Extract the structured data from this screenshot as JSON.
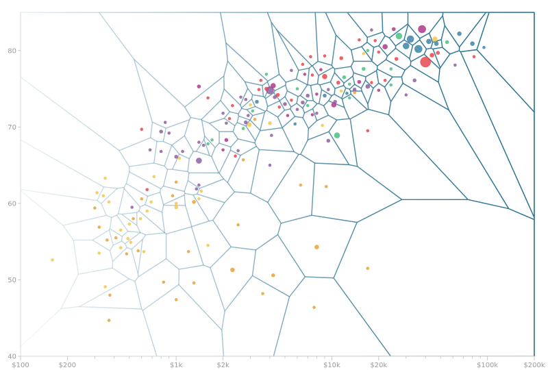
{
  "chart_data": {
    "type": "scatter",
    "title": "",
    "xlabel": "",
    "ylabel": "",
    "x_scale": "log",
    "xlim": [
      100,
      200000
    ],
    "ylim": [
      40,
      85
    ],
    "x_ticks": [
      {
        "value": 100,
        "label": "$100"
      },
      {
        "value": 200,
        "label": "$200"
      },
      {
        "value": 1000,
        "label": "$1k"
      },
      {
        "value": 2000,
        "label": "$2k"
      },
      {
        "value": 10000,
        "label": "$10k"
      },
      {
        "value": 20000,
        "label": "$20k"
      },
      {
        "value": 100000,
        "label": "$100k"
      },
      {
        "value": 200000,
        "label": "$200k"
      }
    ],
    "x_minor_ticks": [
      300,
      400,
      500,
      600,
      700,
      800,
      900,
      3000,
      4000,
      5000,
      6000,
      7000,
      8000,
      9000,
      30000,
      40000,
      50000,
      60000,
      70000,
      80000,
      90000
    ],
    "y_ticks": [
      {
        "value": 40,
        "label": "40"
      },
      {
        "value": 50,
        "label": "50"
      },
      {
        "value": 60,
        "label": "60"
      },
      {
        "value": 70,
        "label": "70"
      },
      {
        "value": 80,
        "label": "80"
      }
    ],
    "grid": false,
    "overlay": "voronoi",
    "colors": {
      "yellow": "#f2c94c",
      "orange": "#e8a23a",
      "purple": "#8e5ea2",
      "magenta": "#b0388a",
      "red": "#e8484f",
      "green": "#4cbf86",
      "blue": "#3d85a8",
      "cell_stroke": "#2e7494",
      "axis": "#d8d8d8"
    },
    "points": [
      {
        "x": 40000,
        "y": 78.5,
        "s": 14,
        "c": "red"
      },
      {
        "x": 38000,
        "y": 82.8,
        "s": 10,
        "c": "magenta"
      },
      {
        "x": 32000,
        "y": 81.5,
        "s": 9,
        "c": "blue"
      },
      {
        "x": 36000,
        "y": 80.2,
        "s": 10,
        "c": "blue"
      },
      {
        "x": 30000,
        "y": 80.6,
        "s": 8,
        "c": "blue"
      },
      {
        "x": 27000,
        "y": 81.9,
        "s": 8,
        "c": "green"
      },
      {
        "x": 42000,
        "y": 81.2,
        "s": 6,
        "c": "blue"
      },
      {
        "x": 44000,
        "y": 79.4,
        "s": 5,
        "c": "red"
      },
      {
        "x": 46000,
        "y": 81.5,
        "s": 6,
        "c": "yellow"
      },
      {
        "x": 47000,
        "y": 80.9,
        "s": 5,
        "c": "blue"
      },
      {
        "x": 48000,
        "y": 79.7,
        "s": 4,
        "c": "red"
      },
      {
        "x": 55000,
        "y": 81.1,
        "s": 4,
        "c": "green"
      },
      {
        "x": 66000,
        "y": 82.2,
        "s": 5,
        "c": "blue"
      },
      {
        "x": 80000,
        "y": 80.9,
        "s": 5,
        "c": "blue"
      },
      {
        "x": 95000,
        "y": 80.4,
        "s": 3,
        "c": "blue"
      },
      {
        "x": 82000,
        "y": 79.2,
        "s": 3,
        "c": "red"
      },
      {
        "x": 62000,
        "y": 78.1,
        "s": 3,
        "c": "purple"
      },
      {
        "x": 34000,
        "y": 76.1,
        "s": 4,
        "c": "purple"
      },
      {
        "x": 24000,
        "y": 77.6,
        "s": 3,
        "c": "green"
      },
      {
        "x": 22000,
        "y": 80.5,
        "s": 6,
        "c": "magenta"
      },
      {
        "x": 26000,
        "y": 78.9,
        "s": 4,
        "c": "red"
      },
      {
        "x": 25000,
        "y": 82.8,
        "s": 4,
        "c": "magenta"
      },
      {
        "x": 18000,
        "y": 82.7,
        "s": 3,
        "c": "purple"
      },
      {
        "x": 19000,
        "y": 81.3,
        "s": 3,
        "c": "red"
      },
      {
        "x": 20000,
        "y": 79.8,
        "s": 3,
        "c": "red"
      },
      {
        "x": 17000,
        "y": 80.0,
        "s": 3,
        "c": "green"
      },
      {
        "x": 16000,
        "y": 77.6,
        "s": 4,
        "c": "green"
      },
      {
        "x": 16000,
        "y": 79.6,
        "s": 3,
        "c": "yellow"
      },
      {
        "x": 15000,
        "y": 81.4,
        "s": 3,
        "c": "red"
      },
      {
        "x": 30000,
        "y": 74.2,
        "s": 3,
        "c": "purple"
      },
      {
        "x": 24000,
        "y": 75.5,
        "s": 3,
        "c": "green"
      },
      {
        "x": 22000,
        "y": 76.1,
        "s": 3,
        "c": "red"
      },
      {
        "x": 20000,
        "y": 74.8,
        "s": 3,
        "c": "magenta"
      },
      {
        "x": 17000,
        "y": 75.3,
        "s": 5,
        "c": "purple"
      },
      {
        "x": 18000,
        "y": 75.8,
        "s": 3,
        "c": "red"
      },
      {
        "x": 15000,
        "y": 75.9,
        "s": 4,
        "c": "magenta"
      },
      {
        "x": 14000,
        "y": 74.9,
        "s": 4,
        "c": "purple"
      },
      {
        "x": 13000,
        "y": 75.6,
        "s": 3,
        "c": "green"
      },
      {
        "x": 12000,
        "y": 76.5,
        "s": 4,
        "c": "green"
      },
      {
        "x": 11000,
        "y": 75.8,
        "s": 4,
        "c": "red"
      },
      {
        "x": 10500,
        "y": 73.3,
        "s": 4,
        "c": "purple"
      },
      {
        "x": 10300,
        "y": 72.9,
        "s": 6,
        "c": "magenta"
      },
      {
        "x": 11500,
        "y": 74.7,
        "s": 3,
        "c": "yellow"
      },
      {
        "x": 12500,
        "y": 74.4,
        "s": 3,
        "c": "blue"
      },
      {
        "x": 13000,
        "y": 73.8,
        "s": 3,
        "c": "green"
      },
      {
        "x": 14000,
        "y": 74.5,
        "s": 3,
        "c": "orange"
      },
      {
        "x": 9000,
        "y": 76.6,
        "s": 6,
        "c": "red"
      },
      {
        "x": 9000,
        "y": 74.1,
        "s": 4,
        "c": "blue"
      },
      {
        "x": 9500,
        "y": 74.9,
        "s": 3,
        "c": "purple"
      },
      {
        "x": 8000,
        "y": 74.3,
        "s": 3,
        "c": "magenta"
      },
      {
        "x": 7500,
        "y": 76.8,
        "s": 3,
        "c": "red"
      },
      {
        "x": 8500,
        "y": 77.5,
        "s": 3,
        "c": "magenta"
      },
      {
        "x": 11500,
        "y": 79.0,
        "s": 4,
        "c": "red"
      },
      {
        "x": 9000,
        "y": 79.3,
        "s": 3,
        "c": "red"
      },
      {
        "x": 7300,
        "y": 79.2,
        "s": 3,
        "c": "red"
      },
      {
        "x": 6500,
        "y": 78.2,
        "s": 3,
        "c": "red"
      },
      {
        "x": 5500,
        "y": 77.4,
        "s": 3,
        "c": "purple"
      },
      {
        "x": 6700,
        "y": 76.9,
        "s": 3,
        "c": "magenta"
      },
      {
        "x": 6000,
        "y": 75.0,
        "s": 3,
        "c": "green"
      },
      {
        "x": 7000,
        "y": 74.1,
        "s": 4,
        "c": "purple"
      },
      {
        "x": 6500,
        "y": 73.2,
        "s": 4,
        "c": "purple"
      },
      {
        "x": 7000,
        "y": 72.8,
        "s": 3,
        "c": "green"
      },
      {
        "x": 7500,
        "y": 71.6,
        "s": 3,
        "c": "magenta"
      },
      {
        "x": 6000,
        "y": 72.3,
        "s": 3,
        "c": "purple"
      },
      {
        "x": 5500,
        "y": 73.5,
        "s": 3,
        "c": "red"
      },
      {
        "x": 5000,
        "y": 73.0,
        "s": 4,
        "c": "purple"
      },
      {
        "x": 4600,
        "y": 72.6,
        "s": 3,
        "c": "red"
      },
      {
        "x": 4300,
        "y": 73.9,
        "s": 4,
        "c": "purple"
      },
      {
        "x": 4000,
        "y": 74.8,
        "s": 10,
        "c": "purple"
      },
      {
        "x": 4200,
        "y": 75.4,
        "s": 6,
        "c": "magenta"
      },
      {
        "x": 4500,
        "y": 74.2,
        "s": 4,
        "c": "red"
      },
      {
        "x": 3500,
        "y": 76.1,
        "s": 3,
        "c": "red"
      },
      {
        "x": 3800,
        "y": 76.9,
        "s": 3,
        "c": "green"
      },
      {
        "x": 4000,
        "y": 70.5,
        "s": 4,
        "c": "yellow"
      },
      {
        "x": 5800,
        "y": 70.4,
        "s": 3,
        "c": "blue"
      },
      {
        "x": 5200,
        "y": 71.5,
        "s": 3,
        "c": "magenta"
      },
      {
        "x": 8000,
        "y": 71.8,
        "s": 3,
        "c": "purple"
      },
      {
        "x": 9500,
        "y": 68.2,
        "s": 4,
        "c": "purple"
      },
      {
        "x": 10800,
        "y": 68.9,
        "s": 7,
        "c": "green"
      },
      {
        "x": 8700,
        "y": 70.2,
        "s": 3,
        "c": "yellow"
      },
      {
        "x": 17000,
        "y": 69.5,
        "s": 3,
        "c": "red"
      },
      {
        "x": 3800,
        "y": 75.0,
        "s": 4,
        "c": "red"
      },
      {
        "x": 3400,
        "y": 74.9,
        "s": 3,
        "c": "red"
      },
      {
        "x": 3100,
        "y": 72.1,
        "s": 3,
        "c": "green"
      },
      {
        "x": 3300,
        "y": 73.3,
        "s": 4,
        "c": "blue"
      },
      {
        "x": 3000,
        "y": 72.9,
        "s": 3,
        "c": "yellow"
      },
      {
        "x": 2800,
        "y": 73.6,
        "s": 3,
        "c": "purple"
      },
      {
        "x": 2600,
        "y": 73.9,
        "s": 3,
        "c": "purple"
      },
      {
        "x": 2300,
        "y": 72.8,
        "s": 3,
        "c": "red"
      },
      {
        "x": 2900,
        "y": 71.5,
        "s": 3,
        "c": "purple"
      },
      {
        "x": 3200,
        "y": 71.0,
        "s": 3,
        "c": "orange"
      },
      {
        "x": 2950,
        "y": 70.3,
        "s": 5,
        "c": "yellow"
      },
      {
        "x": 2800,
        "y": 70.6,
        "s": 4,
        "c": "purple"
      },
      {
        "x": 2700,
        "y": 69.8,
        "s": 3,
        "c": "green"
      },
      {
        "x": 4100,
        "y": 68.9,
        "s": 3,
        "c": "purple"
      },
      {
        "x": 1400,
        "y": 75.3,
        "s": 4,
        "c": "magenta"
      },
      {
        "x": 1600,
        "y": 73.8,
        "s": 3,
        "c": "red"
      },
      {
        "x": 2200,
        "y": 71.1,
        "s": 3,
        "c": "red"
      },
      {
        "x": 2000,
        "y": 71.8,
        "s": 3,
        "c": "purple"
      },
      {
        "x": 2100,
        "y": 70.5,
        "s": 3,
        "c": "purple"
      },
      {
        "x": 2100,
        "y": 68.3,
        "s": 4,
        "c": "magenta"
      },
      {
        "x": 1700,
        "y": 68.3,
        "s": 3,
        "c": "green"
      },
      {
        "x": 1500,
        "y": 67.6,
        "s": 3,
        "c": "purple"
      },
      {
        "x": 1400,
        "y": 68.0,
        "s": 3,
        "c": "purple"
      },
      {
        "x": 1600,
        "y": 67.8,
        "s": 3,
        "c": "green"
      },
      {
        "x": 2000,
        "y": 67.0,
        "s": 3,
        "c": "magenta"
      },
      {
        "x": 2500,
        "y": 66.9,
        "s": 3,
        "c": "purple"
      },
      {
        "x": 2400,
        "y": 66.2,
        "s": 3,
        "c": "red"
      },
      {
        "x": 2700,
        "y": 65.7,
        "s": 3,
        "c": "orange"
      },
      {
        "x": 1400,
        "y": 65.6,
        "s": 7,
        "c": "purple"
      },
      {
        "x": 1100,
        "y": 66.8,
        "s": 3,
        "c": "purple"
      },
      {
        "x": 1050,
        "y": 65.9,
        "s": 3,
        "c": "yellow"
      },
      {
        "x": 1000,
        "y": 66.1,
        "s": 4,
        "c": "purple"
      },
      {
        "x": 800,
        "y": 69.4,
        "s": 4,
        "c": "purple"
      },
      {
        "x": 850,
        "y": 70.6,
        "s": 3,
        "c": "purple"
      },
      {
        "x": 900,
        "y": 69.2,
        "s": 3,
        "c": "purple"
      },
      {
        "x": 600,
        "y": 69.7,
        "s": 3,
        "c": "red"
      },
      {
        "x": 680,
        "y": 67.0,
        "s": 3,
        "c": "purple"
      },
      {
        "x": 800,
        "y": 66.8,
        "s": 3,
        "c": "purple"
      },
      {
        "x": 4000,
        "y": 65.0,
        "s": 3,
        "c": "purple"
      },
      {
        "x": 6300,
        "y": 62.4,
        "s": 3,
        "c": "orange"
      },
      {
        "x": 9200,
        "y": 62.2,
        "s": 3,
        "c": "orange"
      },
      {
        "x": 1400,
        "y": 62.4,
        "s": 3,
        "c": "purple"
      },
      {
        "x": 1450,
        "y": 61.6,
        "s": 3,
        "c": "yellow"
      },
      {
        "x": 1350,
        "y": 61.9,
        "s": 3,
        "c": "purple"
      },
      {
        "x": 1300,
        "y": 60.2,
        "s": 4,
        "c": "orange"
      },
      {
        "x": 1400,
        "y": 60.6,
        "s": 3,
        "c": "yellow"
      },
      {
        "x": 1000,
        "y": 62.8,
        "s": 3,
        "c": "orange"
      },
      {
        "x": 950,
        "y": 61.0,
        "s": 3,
        "c": "orange"
      },
      {
        "x": 1000,
        "y": 60.0,
        "s": 3,
        "c": "yellow"
      },
      {
        "x": 1000,
        "y": 59.5,
        "s": 4,
        "c": "yellow"
      },
      {
        "x": 720,
        "y": 63.5,
        "s": 3,
        "c": "yellow"
      },
      {
        "x": 650,
        "y": 61.8,
        "s": 3,
        "c": "red"
      },
      {
        "x": 600,
        "y": 60.6,
        "s": 3,
        "c": "orange"
      },
      {
        "x": 690,
        "y": 60.2,
        "s": 3,
        "c": "yellow"
      },
      {
        "x": 520,
        "y": 59.5,
        "s": 3,
        "c": "purple"
      },
      {
        "x": 650,
        "y": 59.0,
        "s": 3,
        "c": "yellow"
      },
      {
        "x": 590,
        "y": 58.0,
        "s": 3,
        "c": "yellow"
      },
      {
        "x": 530,
        "y": 58.0,
        "s": 3,
        "c": "orange"
      },
      {
        "x": 500,
        "y": 57.3,
        "s": 3,
        "c": "yellow"
      },
      {
        "x": 350,
        "y": 63.3,
        "s": 3,
        "c": "yellow"
      },
      {
        "x": 310,
        "y": 61.4,
        "s": 3,
        "c": "yellow"
      },
      {
        "x": 340,
        "y": 61.0,
        "s": 3,
        "c": "yellow"
      },
      {
        "x": 370,
        "y": 60.2,
        "s": 3,
        "c": "yellow"
      },
      {
        "x": 300,
        "y": 59.4,
        "s": 3,
        "c": "orange"
      },
      {
        "x": 320,
        "y": 56.9,
        "s": 3,
        "c": "orange"
      },
      {
        "x": 440,
        "y": 56.5,
        "s": 3,
        "c": "yellow"
      },
      {
        "x": 410,
        "y": 55.5,
        "s": 3,
        "c": "orange"
      },
      {
        "x": 490,
        "y": 55.4,
        "s": 3,
        "c": "yellow"
      },
      {
        "x": 360,
        "y": 55.2,
        "s": 3,
        "c": "orange"
      },
      {
        "x": 510,
        "y": 54.9,
        "s": 3,
        "c": "yellow"
      },
      {
        "x": 440,
        "y": 54.2,
        "s": 3,
        "c": "yellow"
      },
      {
        "x": 570,
        "y": 53.8,
        "s": 3,
        "c": "orange"
      },
      {
        "x": 620,
        "y": 53.7,
        "s": 3,
        "c": "yellow"
      },
      {
        "x": 320,
        "y": 53.5,
        "s": 3,
        "c": "yellow"
      },
      {
        "x": 480,
        "y": 53.4,
        "s": 3,
        "c": "orange"
      },
      {
        "x": 1600,
        "y": 54.5,
        "s": 3,
        "c": "yellow"
      },
      {
        "x": 1200,
        "y": 53.7,
        "s": 3,
        "c": "orange"
      },
      {
        "x": 160,
        "y": 52.6,
        "s": 3,
        "c": "yellow"
      },
      {
        "x": 2500,
        "y": 57.2,
        "s": 3,
        "c": "orange"
      },
      {
        "x": 8000,
        "y": 54.3,
        "s": 5,
        "c": "orange"
      },
      {
        "x": 2300,
        "y": 51.3,
        "s": 5,
        "c": "orange"
      },
      {
        "x": 4200,
        "y": 50.6,
        "s": 4,
        "c": "orange"
      },
      {
        "x": 830,
        "y": 49.7,
        "s": 3,
        "c": "orange"
      },
      {
        "x": 1300,
        "y": 49.6,
        "s": 3,
        "c": "orange"
      },
      {
        "x": 350,
        "y": 49.1,
        "s": 3,
        "c": "yellow"
      },
      {
        "x": 3600,
        "y": 48.2,
        "s": 3,
        "c": "orange"
      },
      {
        "x": 375,
        "y": 48.0,
        "s": 3,
        "c": "orange"
      },
      {
        "x": 1000,
        "y": 47.4,
        "s": 3,
        "c": "orange"
      },
      {
        "x": 7700,
        "y": 46.4,
        "s": 3,
        "c": "orange"
      },
      {
        "x": 17000,
        "y": 51.5,
        "s": 3,
        "c": "orange"
      },
      {
        "x": 370,
        "y": 44.7,
        "s": 3,
        "c": "orange"
      }
    ]
  }
}
